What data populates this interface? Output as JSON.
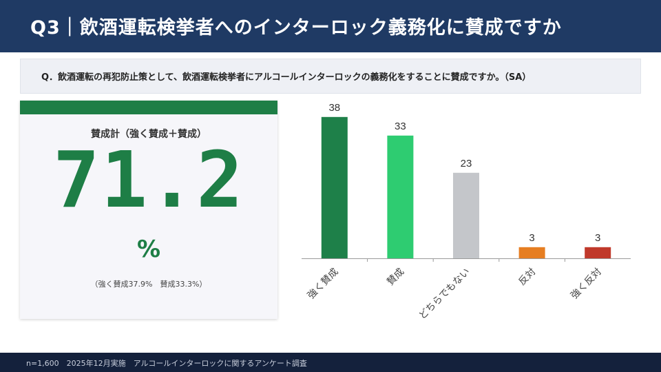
{
  "header": {
    "title": "Q3｜飲酒運転検挙者へのインターロック義務化に賛成ですか"
  },
  "question": {
    "text": "Q．飲酒運転の再犯防止策として、飲酒運転検挙者にアルコールインターロックの義務化をすることに賛成ですか。（SA）"
  },
  "kpi": {
    "label": "賛成計（強く賛成＋賛成）",
    "value": "71.2",
    "unit": "%",
    "note": "（強く賛成37.9%　賛成33.3%）",
    "accent_color": "#1e7e46"
  },
  "chart_data": {
    "type": "bar",
    "categories": [
      "強く賛成",
      "賛成",
      "どちらでもない",
      "反対",
      "強く反対"
    ],
    "values": [
      38,
      33,
      23,
      3,
      3
    ],
    "colors": [
      "#1e8049",
      "#2ecc71",
      "#c4c6ca",
      "#e67e22",
      "#c0392b"
    ],
    "data_labels": true,
    "grid": false,
    "ylim": [
      0,
      40
    ]
  },
  "footer": {
    "text": "n=1,600　2025年12月実施　アルコールインターロックに関するアンケート調査"
  }
}
